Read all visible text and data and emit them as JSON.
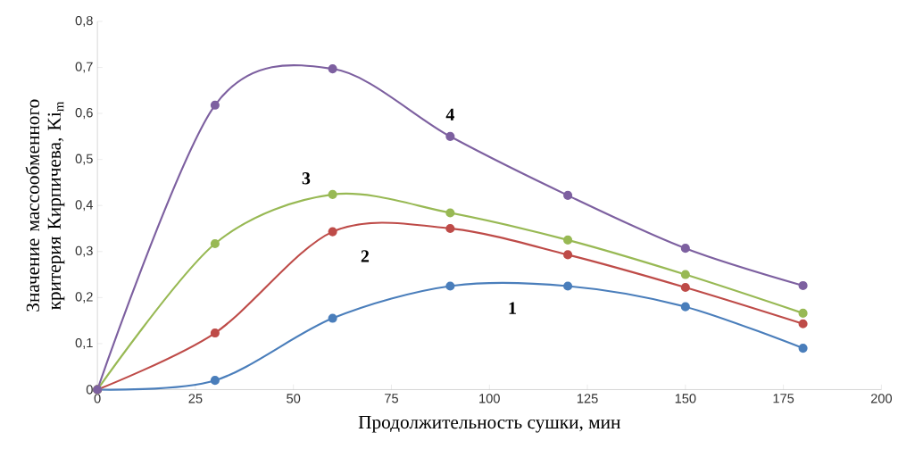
{
  "chart_data": {
    "type": "line",
    "xlabel": "Продолжительность сушки, мин",
    "ylabel": "Значение массообменного критерия Кирпичева, Ki$_{m}$",
    "x": [
      0,
      30,
      60,
      90,
      120,
      150,
      180
    ],
    "series": [
      {
        "name": "1",
        "color": "#4a7ebb",
        "values": [
          0,
          0.02,
          0.155,
          0.225,
          0.225,
          0.18,
          0.09
        ]
      },
      {
        "name": "2",
        "color": "#be4b48",
        "values": [
          0,
          0.123,
          0.343,
          0.35,
          0.293,
          0.222,
          0.143
        ]
      },
      {
        "name": "3",
        "color": "#98b954",
        "values": [
          0,
          0.317,
          0.424,
          0.384,
          0.325,
          0.25,
          0.166
        ]
      },
      {
        "name": "4",
        "color": "#7d60a0",
        "values": [
          0,
          0.618,
          0.697,
          0.55,
          0.422,
          0.307,
          0.226
        ]
      }
    ],
    "xlim": [
      0,
      200
    ],
    "xticks": [
      0,
      25,
      50,
      75,
      100,
      125,
      150,
      175,
      200
    ],
    "ylim": [
      0,
      0.8
    ],
    "yticks": [
      {
        "value": 0,
        "label": "0"
      },
      {
        "value": 0.1,
        "label": "0,1"
      },
      {
        "value": 0.2,
        "label": "0,2"
      },
      {
        "value": 0.3,
        "label": "0,3"
      },
      {
        "value": 0.4,
        "label": "0,4"
      },
      {
        "value": 0.5,
        "label": "0,5"
      },
      {
        "value": 0.6,
        "label": "0,6"
      },
      {
        "value": 0.7,
        "label": "0,7"
      },
      {
        "value": 0.8,
        "label": "0,8"
      }
    ],
    "marker": "circle",
    "line_style": "solid"
  }
}
